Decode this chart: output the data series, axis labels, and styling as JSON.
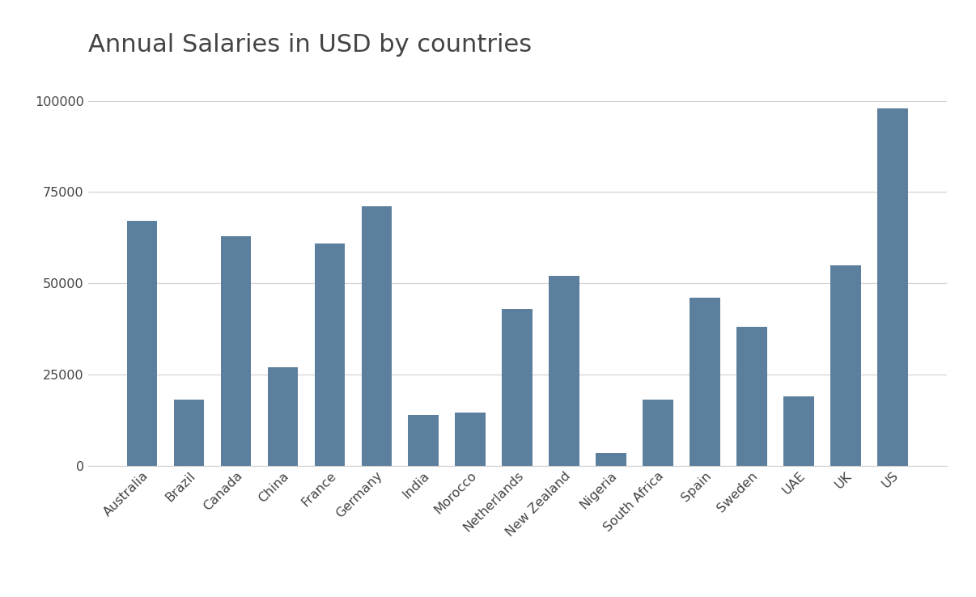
{
  "title": "Annual Salaries in USD by countries",
  "categories": [
    "Australia",
    "Brazil",
    "Canada",
    "China",
    "France",
    "Germany",
    "India",
    "Morocco",
    "Netherlands",
    "New Zealand",
    "Nigeria",
    "South Africa",
    "Spain",
    "Sweden",
    "UAE",
    "UK",
    "US"
  ],
  "values": [
    67000,
    18000,
    63000,
    27000,
    61000,
    71000,
    14000,
    14500,
    43000,
    52000,
    3500,
    18000,
    46000,
    38000,
    19000,
    55000,
    98000
  ],
  "bar_color": "#5b7f9c",
  "background_color": "#ffffff",
  "ylim": [
    0,
    108000
  ],
  "yticks": [
    0,
    25000,
    50000,
    75000,
    100000
  ],
  "title_fontsize": 22,
  "tick_fontsize": 11.5,
  "grid_color": "#d0d0d0",
  "title_color": "#444444",
  "tick_color": "#444444"
}
